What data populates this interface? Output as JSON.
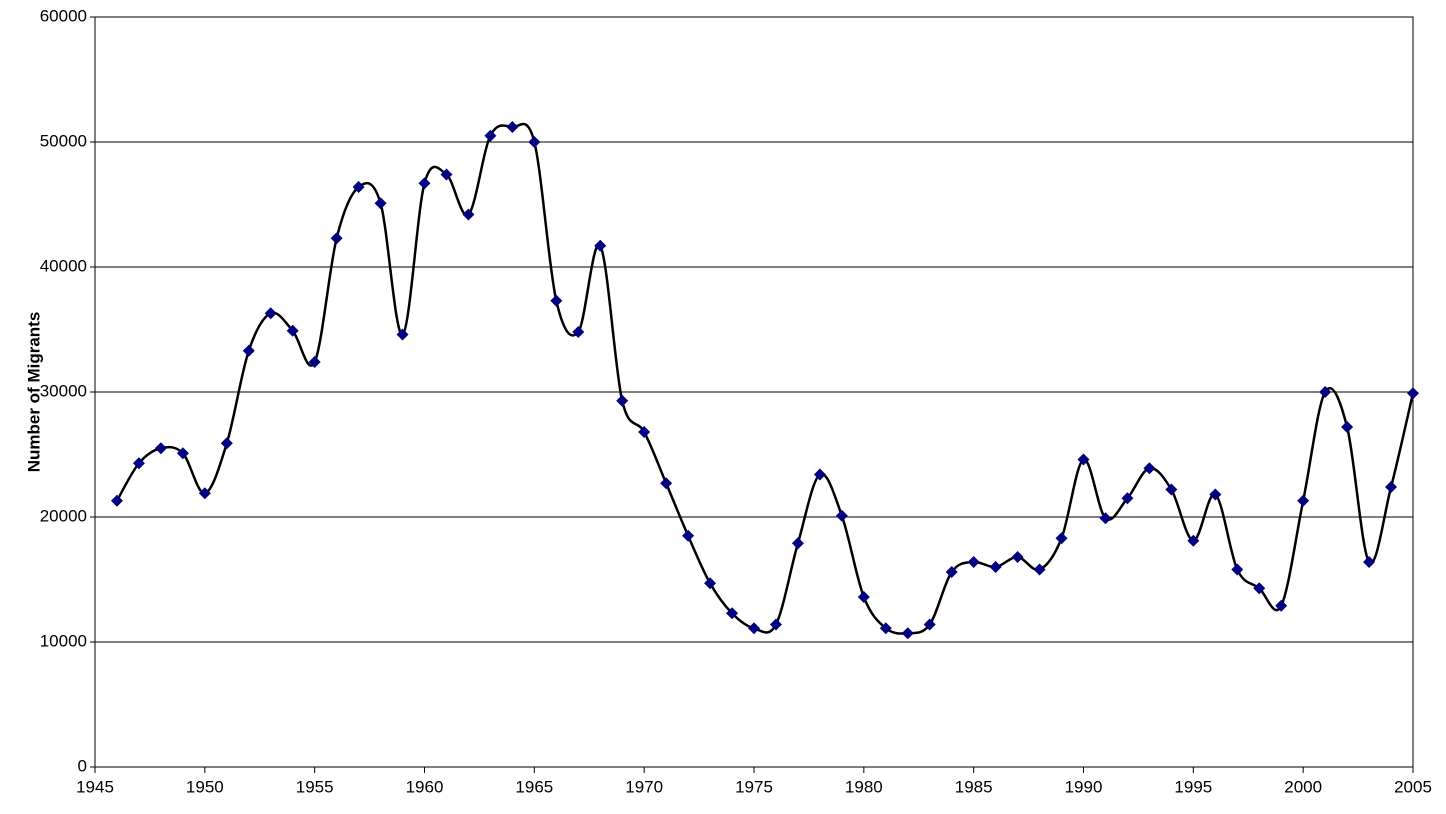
{
  "chart_data": {
    "type": "line",
    "y_label": "Number of Migrants",
    "x": [
      1946,
      1947,
      1948,
      1949,
      1950,
      1951,
      1952,
      1953,
      1954,
      1955,
      1956,
      1957,
      1958,
      1959,
      1960,
      1961,
      1962,
      1963,
      1964,
      1965,
      1966,
      1967,
      1968,
      1969,
      1970,
      1971,
      1972,
      1973,
      1974,
      1975,
      1976,
      1977,
      1978,
      1979,
      1980,
      1981,
      1982,
      1983,
      1984,
      1985,
      1986,
      1987,
      1988,
      1989,
      1990,
      1991,
      1992,
      1993,
      1994,
      1995,
      1996,
      1997,
      1998,
      1999,
      2000,
      2001,
      2002,
      2003,
      2004,
      2005
    ],
    "series": [
      {
        "color": "#000080",
        "line_color": "#000000",
        "values": [
          21300,
          24300,
          25500,
          25100,
          21900,
          25900,
          33300,
          36300,
          34900,
          32400,
          42300,
          46400,
          45100,
          34600,
          46700,
          47400,
          44200,
          50500,
          51200,
          50000,
          37300,
          34800,
          41700,
          29300,
          26800,
          22700,
          18500,
          14700,
          12300,
          11100,
          11400,
          17900,
          23400,
          20100,
          13600,
          11100,
          10700,
          11400,
          15600,
          16400,
          16000,
          16800,
          15800,
          18300,
          24600,
          19900,
          21500,
          23900,
          22200,
          18100,
          21800,
          15800,
          14300,
          12900,
          21300,
          30000,
          27200,
          16400,
          22400,
          29900
        ]
      }
    ],
    "xlim": [
      1945,
      2005
    ],
    "xticks": [
      1945,
      1950,
      1955,
      1960,
      1965,
      1970,
      1975,
      1980,
      1985,
      1990,
      1995,
      2000,
      2005
    ],
    "ylim": [
      0,
      60000
    ],
    "yticks": [
      0,
      10000,
      20000,
      30000,
      40000,
      50000,
      60000
    ],
    "grid": true
  }
}
